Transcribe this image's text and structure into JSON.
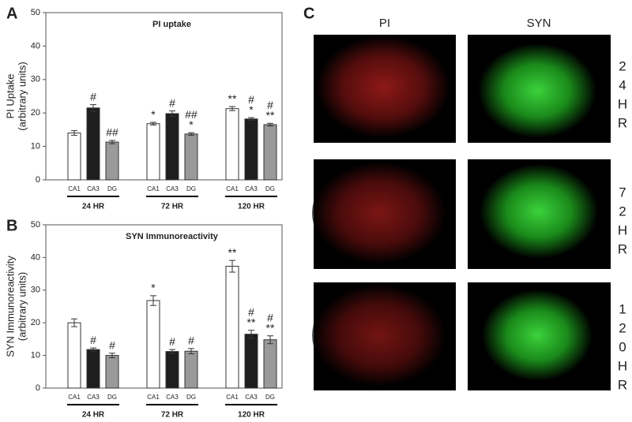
{
  "chart_data": [
    {
      "type": "bar",
      "panel": "A",
      "title": "PI uptake",
      "y_label": [
        "PI Uptake",
        "(arbitrary units)"
      ],
      "groups": [
        "24 HR",
        "72 HR",
        "120 HR"
      ],
      "categories": [
        "CA1",
        "CA3",
        "DG",
        "CA1",
        "CA3",
        "DG",
        "CA1",
        "CA3",
        "DG"
      ],
      "values": [
        14,
        21.5,
        11.3,
        16.8,
        19.8,
        13.7,
        21.3,
        18.2,
        16.5
      ],
      "errors": [
        0.7,
        1,
        0.5,
        0.4,
        0.8,
        0.4,
        0.6,
        0.4,
        0.4
      ],
      "annotations": [
        null,
        [
          "#"
        ],
        [
          "##"
        ],
        [
          "*"
        ],
        [
          "#"
        ],
        [
          "##",
          "*"
        ],
        [
          "**"
        ],
        [
          "#",
          "*"
        ],
        [
          "#",
          "**"
        ]
      ],
      "colors": [
        "#ffffff",
        "#1e1e1e",
        "#9a9a9a"
      ],
      "ylim": [
        0,
        50
      ],
      "yticks": [
        0,
        10,
        20,
        30,
        40,
        50
      ]
    },
    {
      "type": "bar",
      "panel": "B",
      "title": "SYN Immunoreactivity",
      "y_label": [
        "SYN Immunoreactivity",
        "(arbitrary units)"
      ],
      "groups": [
        "24 HR",
        "72 HR",
        "120 HR"
      ],
      "categories": [
        "CA1",
        "CA3",
        "DG",
        "CA1",
        "CA3",
        "DG",
        "CA1",
        "CA3",
        "DG"
      ],
      "values": [
        20,
        11.8,
        10,
        26.8,
        11.2,
        11.3,
        37.3,
        16.5,
        14.8
      ],
      "errors": [
        1.2,
        0.5,
        0.7,
        1.5,
        0.6,
        0.8,
        1.8,
        1.2,
        1.2
      ],
      "annotations": [
        null,
        [
          "#"
        ],
        [
          "#"
        ],
        [
          "*"
        ],
        [
          "#"
        ],
        [
          "#"
        ],
        [
          "**"
        ],
        [
          "#",
          "**"
        ],
        [
          "#",
          "**"
        ]
      ],
      "colors": [
        "#ffffff",
        "#1e1e1e",
        "#9a9a9a"
      ],
      "ylim": [
        0,
        50
      ],
      "yticks": [
        0,
        10,
        20,
        30,
        40,
        50
      ]
    }
  ],
  "panel_c": {
    "label": "C",
    "columns": [
      "PI",
      "SYN"
    ],
    "rows": [
      [
        "2",
        "4",
        "H",
        "R"
      ],
      [
        "7",
        "2",
        "H",
        "R"
      ],
      [
        "1",
        "2",
        "0",
        "H",
        "R"
      ]
    ]
  }
}
